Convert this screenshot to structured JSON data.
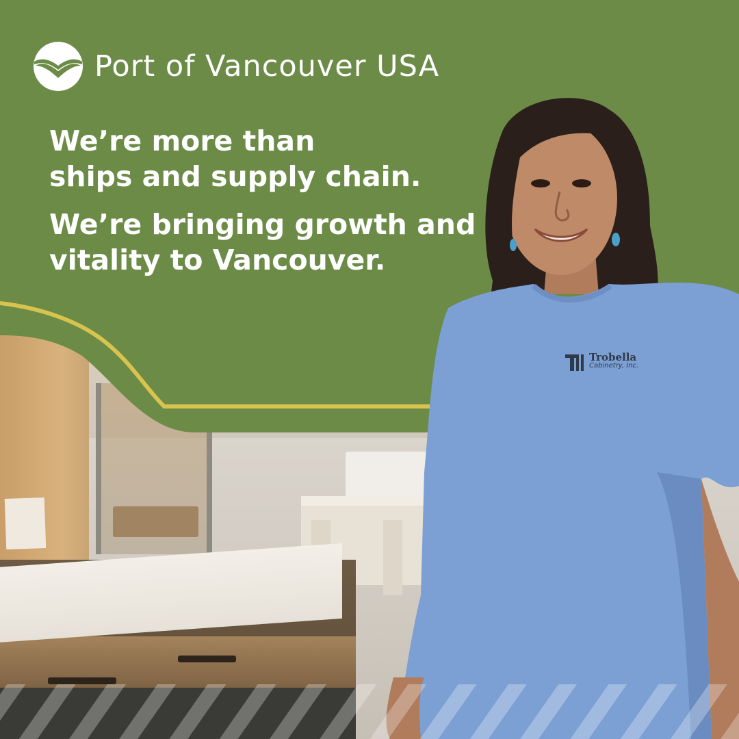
{
  "brand": {
    "name": "Port of Vancouver USA",
    "logo_icon": "port-bird-logo-icon"
  },
  "headline": {
    "block1": [
      "We’re more than",
      "ships and supply chain."
    ],
    "block2": [
      "We’re bringing growth and",
      "vitality to Vancouver."
    ]
  },
  "shirt": {
    "brand": "Trobella",
    "sub": "Cabinetry, Inc."
  },
  "colors": {
    "green_panel": "#6b8b47",
    "accent_yellow": "#d8c34e",
    "shirt_blue": "#7c9fd4",
    "text": "#ffffff"
  }
}
